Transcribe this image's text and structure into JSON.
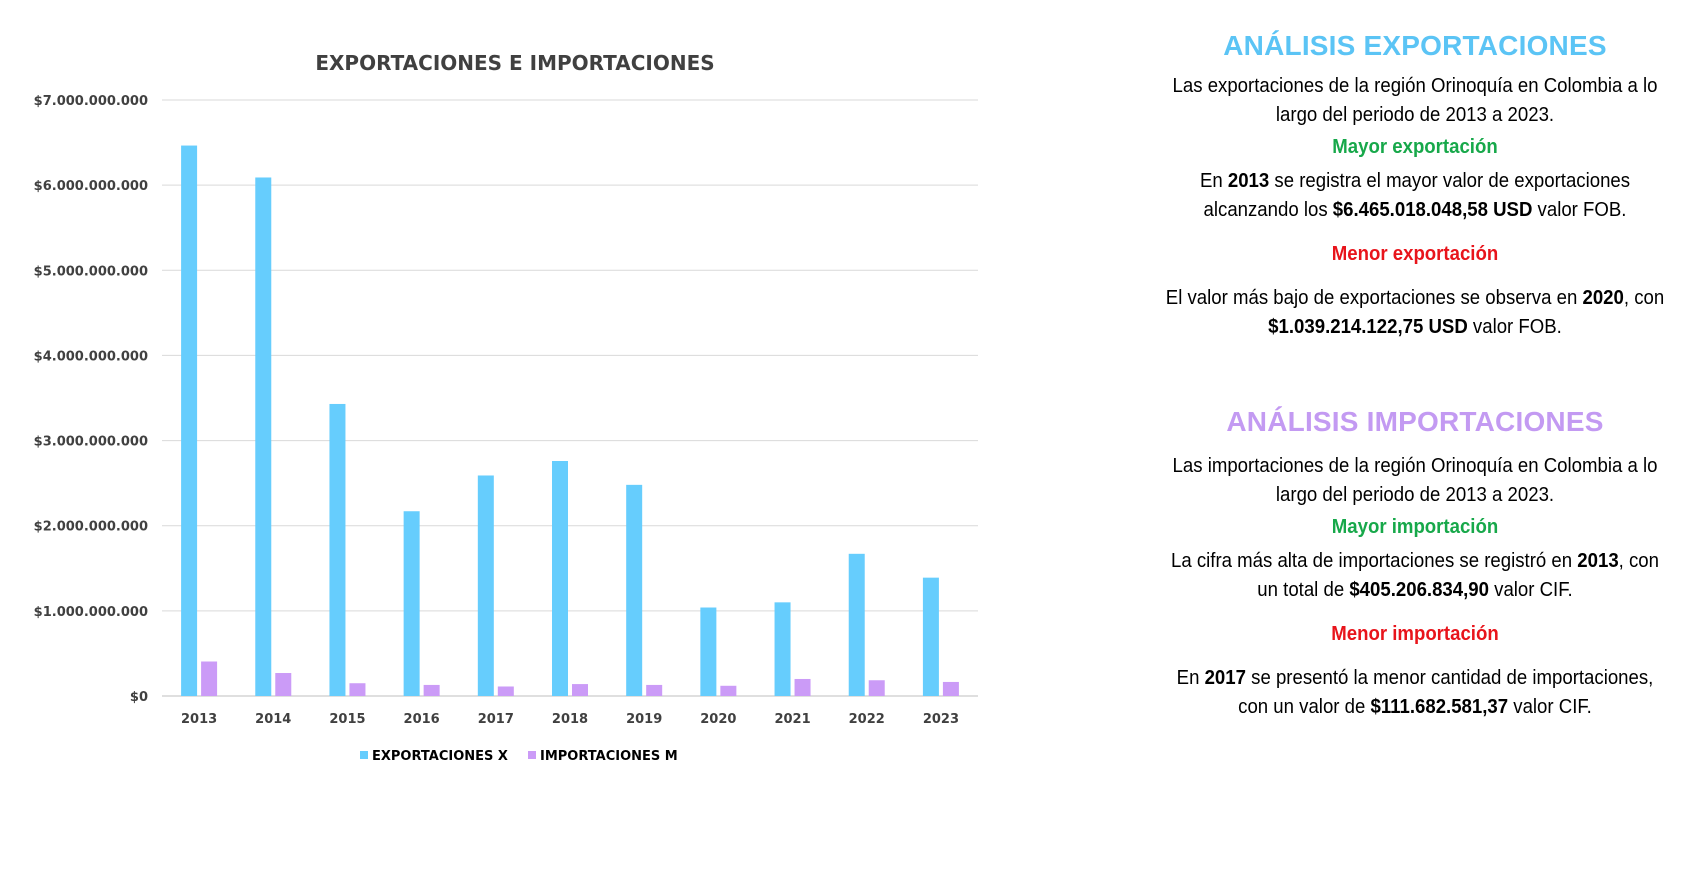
{
  "chart_data": {
    "type": "bar",
    "title": "EXPORTACIONES E IMPORTACIONES",
    "categories": [
      "2013",
      "2014",
      "2015",
      "2016",
      "2017",
      "2018",
      "2019",
      "2020",
      "2021",
      "2022",
      "2023"
    ],
    "series": [
      {
        "name": "EXPORTACIONES X",
        "color": "#66cdfd",
        "values": [
          6465018048.58,
          6090000000,
          3430000000,
          2170000000,
          2590000000,
          2760000000,
          2480000000,
          1039214122.75,
          1100000000,
          1670000000,
          1390000000
        ]
      },
      {
        "name": "IMPORTACIONES M",
        "color": "#cb9bf7",
        "values": [
          405206834.9,
          270000000,
          150000000,
          130000000,
          111682581.37,
          140000000,
          130000000,
          120000000,
          200000000,
          185000000,
          165000000
        ]
      }
    ],
    "ylim": [
      0,
      7000000000
    ],
    "yticks": [
      0,
      1000000000,
      2000000000,
      3000000000,
      4000000000,
      5000000000,
      6000000000,
      7000000000
    ],
    "ytick_labels": [
      "$0",
      "$1.000.000.000",
      "$2.000.000.000",
      "$3.000.000.000",
      "$4.000.000.000",
      "$5.000.000.000",
      "$6.000.000.000",
      "$7.000.000.000"
    ],
    "xlabel": "",
    "ylabel": "",
    "grid": true,
    "legend_position": "bottom"
  },
  "analysis": {
    "exports": {
      "title": "ANÁLISIS EXPORTACIONES",
      "intro": "Las exportaciones de la región Orinoquía en Colombia a lo largo del periodo de 2013 a 2023.",
      "max_heading": "Mayor exportación",
      "max_text": {
        "p1": "En ",
        "year": "2013",
        "p2": " se registra el mayor valor de exportaciones alcanzando los ",
        "value": "$6.465.018.048,58 USD",
        "p3": " valor FOB."
      },
      "min_heading": "Menor exportación",
      "min_text": {
        "p1": "El valor más bajo de exportaciones se observa en ",
        "year": "2020",
        "p2": ", con ",
        "value": "$1.039.214.122,75 USD",
        "p3": " valor FOB."
      }
    },
    "imports": {
      "title": "ANÁLISIS IMPORTACIONES",
      "intro": "Las importaciones de la región Orinoquía en Colombia a lo largo del periodo de 2013 a 2023.",
      "max_heading": "Mayor importación",
      "max_text": {
        "p1": "La cifra más alta de importaciones se registró en ",
        "year": "2013",
        "p2": ", con un total de ",
        "value": "$405.206.834,90",
        "p3": " valor CIF."
      },
      "min_heading": "Menor importación",
      "min_text": {
        "p1": "En ",
        "year": "2017",
        "p2": " se presentó la menor cantidad de importaciones, con un valor de ",
        "value": "$111.682.581,37",
        "p3": " valor CIF."
      }
    }
  }
}
